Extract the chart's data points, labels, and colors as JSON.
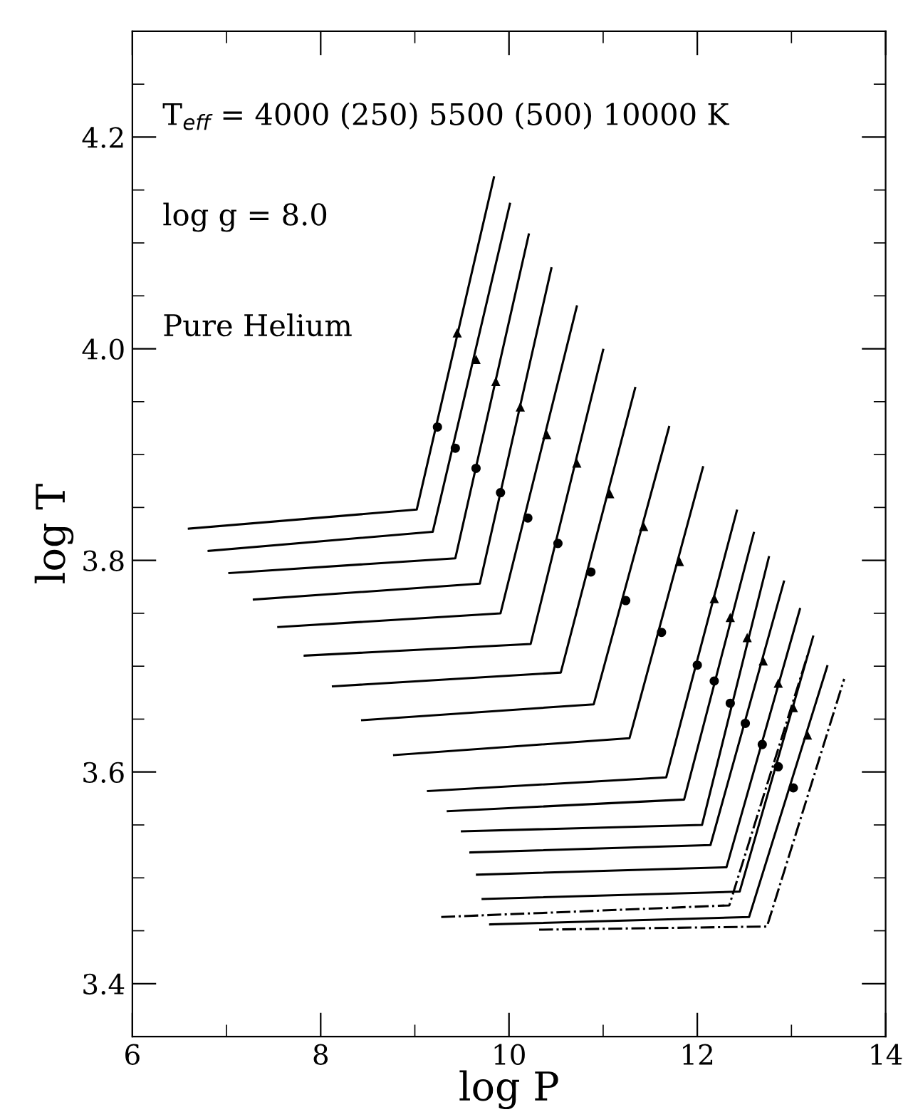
{
  "chart_data": {
    "type": "line",
    "xlabel": "log P",
    "ylabel": "log T",
    "annotations": [
      "T$_{eff}$ = 4000 (250) 5500 (500) 10000 K",
      "log g = 8.0",
      "Pure Helium"
    ],
    "xlim": [
      6,
      14
    ],
    "ylim": [
      3.35,
      4.3
    ],
    "xticks": [
      6,
      {
        "value": 7,
        "label": null
      },
      8,
      {
        "value": 9,
        "label": null
      },
      10,
      {
        "value": 11,
        "label": null
      },
      12,
      {
        "value": 13,
        "label": null
      },
      14
    ],
    "yticks": [
      3.4,
      {
        "value": 3.45,
        "label": null
      },
      {
        "value": 3.5,
        "label": null
      },
      {
        "value": 3.55,
        "label": null
      },
      3.6,
      {
        "value": 3.65,
        "label": null
      },
      {
        "value": 3.7,
        "label": null
      },
      {
        "value": 3.75,
        "label": null
      },
      3.8,
      {
        "value": 3.85,
        "label": null
      },
      {
        "value": 3.9,
        "label": null
      },
      {
        "value": 3.95,
        "label": null
      },
      {
        "value": 4.0,
        "label": "4.0"
      },
      {
        "value": 4.05,
        "label": null
      },
      {
        "value": 4.1,
        "label": null
      },
      {
        "value": 4.15,
        "label": null
      },
      4.2,
      {
        "value": 4.25,
        "label": null
      }
    ],
    "series": [
      {
        "type": "line",
        "color": "#000000",
        "line_style": "solid",
        "marker": "none",
        "x": [
          6.6,
          9.02,
          9.84
        ],
        "values": [
          3.83,
          3.848,
          4.162
        ]
      },
      {
        "type": "line",
        "color": "#000000",
        "line_style": "solid",
        "marker": "none",
        "x": [
          6.81,
          9.19,
          10.01
        ],
        "values": [
          3.809,
          3.827,
          4.137
        ]
      },
      {
        "type": "line",
        "color": "#000000",
        "line_style": "solid",
        "marker": "none",
        "x": [
          7.03,
          9.43,
          10.21
        ],
        "values": [
          3.788,
          3.802,
          4.108
        ]
      },
      {
        "type": "line",
        "color": "#000000",
        "line_style": "solid",
        "marker": "none",
        "x": [
          7.29,
          9.69,
          10.45
        ],
        "values": [
          3.763,
          3.778,
          4.076
        ]
      },
      {
        "type": "line",
        "color": "#000000",
        "line_style": "solid",
        "marker": "none",
        "x": [
          7.55,
          9.91,
          10.72
        ],
        "values": [
          3.737,
          3.75,
          4.04
        ]
      },
      {
        "type": "line",
        "color": "#000000",
        "line_style": "solid",
        "marker": "none",
        "x": [
          7.83,
          10.23,
          11.0
        ],
        "values": [
          3.71,
          3.721,
          3.999
        ]
      },
      {
        "type": "line",
        "color": "#000000",
        "line_style": "solid",
        "marker": "none",
        "x": [
          8.13,
          10.55,
          11.34
        ],
        "values": [
          3.681,
          3.694,
          3.963
        ]
      },
      {
        "type": "line",
        "color": "#000000",
        "line_style": "solid",
        "marker": "none",
        "x": [
          8.44,
          10.9,
          11.7
        ],
        "values": [
          3.649,
          3.664,
          3.926
        ]
      },
      {
        "type": "line",
        "color": "#000000",
        "line_style": "solid",
        "marker": "none",
        "x": [
          8.78,
          11.28,
          12.06
        ],
        "values": [
          3.616,
          3.632,
          3.888
        ]
      },
      {
        "type": "line",
        "color": "#000000",
        "line_style": "solid",
        "marker": "none",
        "x": [
          9.14,
          11.67,
          12.42
        ],
        "values": [
          3.582,
          3.595,
          3.847
        ]
      },
      {
        "type": "line",
        "color": "#000000",
        "line_style": "solid",
        "marker": "none",
        "x": [
          9.35,
          11.86,
          12.6
        ],
        "values": [
          3.563,
          3.574,
          3.826
        ]
      },
      {
        "type": "line",
        "color": "#000000",
        "line_style": "solid",
        "marker": "none",
        "x": [
          9.5,
          12.05,
          12.76
        ],
        "values": [
          3.544,
          3.55,
          3.803
        ]
      },
      {
        "type": "line",
        "color": "#000000",
        "line_style": "solid",
        "marker": "none",
        "x": [
          9.59,
          12.14,
          12.92
        ],
        "values": [
          3.524,
          3.531,
          3.78
        ]
      },
      {
        "type": "line",
        "color": "#000000",
        "line_style": "solid",
        "marker": "none",
        "x": [
          9.66,
          12.31,
          13.09
        ],
        "values": [
          3.503,
          3.51,
          3.754
        ]
      },
      {
        "type": "line",
        "color": "#000000",
        "line_style": "solid",
        "marker": "none",
        "x": [
          9.72,
          12.45,
          13.23
        ],
        "values": [
          3.48,
          3.487,
          3.728
        ]
      },
      {
        "type": "line",
        "color": "#000000",
        "line_style": "solid",
        "marker": "none",
        "x": [
          9.8,
          12.55,
          13.38
        ],
        "values": [
          3.456,
          3.463,
          3.7
        ]
      },
      {
        "type": "line",
        "color": "#000000",
        "line_style": "dashdot",
        "marker": "none",
        "x": [
          9.28,
          12.34,
          13.18
        ],
        "values": [
          3.463,
          3.474,
          3.713
        ]
      },
      {
        "type": "line",
        "color": "#000000",
        "line_style": "dashdot",
        "marker": "none",
        "x": [
          10.32,
          12.74,
          13.56
        ],
        "values": [
          3.451,
          3.454,
          3.688
        ]
      },
      {
        "type": "scatter",
        "color": "#000000",
        "marker": "circle",
        "x": [
          9.24,
          9.43,
          9.65,
          9.91,
          10.2,
          10.52,
          10.87,
          11.24,
          11.62,
          12.0,
          12.18,
          12.35,
          12.51,
          12.69,
          12.86,
          13.02
        ],
        "values": [
          3.926,
          3.906,
          3.887,
          3.864,
          3.84,
          3.816,
          3.789,
          3.762,
          3.732,
          3.701,
          3.686,
          3.665,
          3.646,
          3.626,
          3.605,
          3.585
        ]
      },
      {
        "type": "scatter",
        "color": "#000000",
        "marker": "triangle",
        "x": [
          9.45,
          9.65,
          9.86,
          10.12,
          10.4,
          10.72,
          11.07,
          11.43,
          11.81,
          12.18,
          12.35,
          12.53,
          12.7,
          12.86,
          13.02,
          13.17
        ],
        "values": [
          4.015,
          3.99,
          3.969,
          3.945,
          3.919,
          3.892,
          3.863,
          3.832,
          3.799,
          3.764,
          3.746,
          3.727,
          3.705,
          3.684,
          3.661,
          3.635
        ]
      }
    ]
  }
}
